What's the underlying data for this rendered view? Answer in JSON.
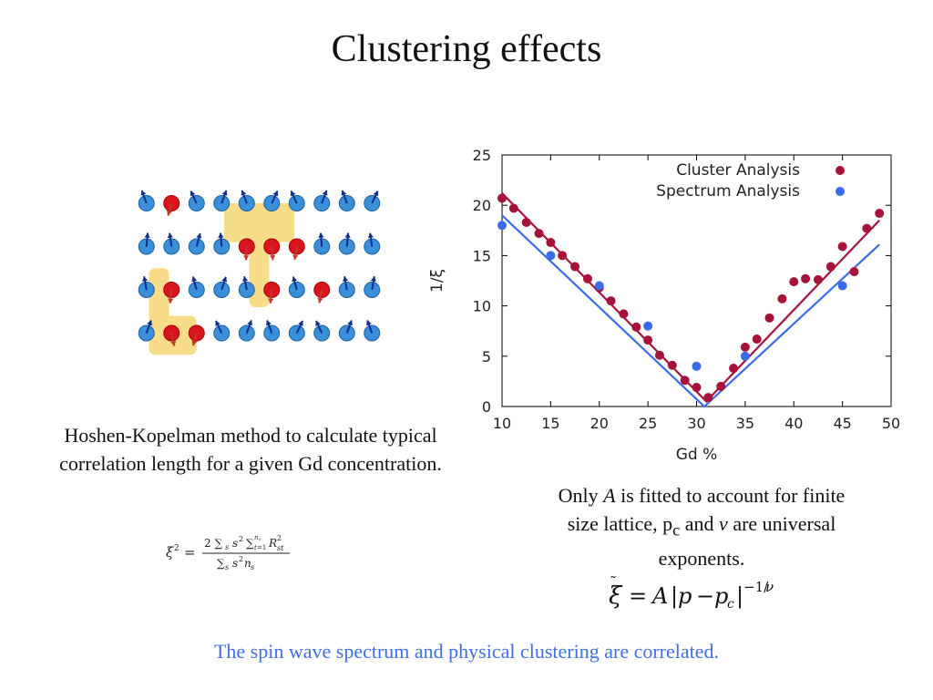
{
  "slide": {
    "title": "Clustering effects",
    "hk_caption": "Hoshen-Kopelman method to calculate typical correlation length for a given Gd concentration.",
    "fit_caption": {
      "part1": "Only ",
      "italic_A": "A",
      "part2": " is fitted to account for finite size lattice, p",
      "sub_c": "c",
      "part3": " and ",
      "italic_nu": "ν",
      "part4": " are universal exponents."
    },
    "footer": "The spin wave spectrum and physical clustering are correlated."
  },
  "lattice": {
    "rows": 4,
    "cols": 10,
    "red_sites": [
      [
        0,
        1
      ],
      [
        1,
        4
      ],
      [
        1,
        5
      ],
      [
        1,
        6
      ],
      [
        2,
        1
      ],
      [
        2,
        5
      ],
      [
        2,
        7
      ],
      [
        3,
        1
      ],
      [
        3,
        2
      ]
    ],
    "colors": {
      "site_blue": "#3a8fd9",
      "site_red": "#d9141e",
      "arrow_blue": "#0d2e8a",
      "arrow_red": "#c0392b",
      "cluster_highlight": "#f7dc8a"
    }
  },
  "formulas": {
    "correlation_length_squared": "ξ² = 2 Σ_s s² Σ_{t=1}^{n_s} R_st² / Σ_s s² n_s",
    "fit_law": "ξ̃ = A|p − p_c|^(−1/ν)"
  },
  "chart_data": {
    "type": "scatter",
    "xlabel": "Gd %",
    "ylabel": "1/ξ",
    "xlim": [
      10,
      50
    ],
    "ylim": [
      0,
      25
    ],
    "xticks": [
      10,
      15,
      20,
      25,
      30,
      35,
      40,
      45,
      50
    ],
    "yticks": [
      0,
      5,
      10,
      15,
      20,
      25
    ],
    "grid": false,
    "legend_position": "top-right",
    "series": [
      {
        "name": "Cluster Analysis",
        "color": "#a5123a",
        "points": [
          [
            10,
            20.7
          ],
          [
            11.2,
            19.7
          ],
          [
            12.5,
            18.3
          ],
          [
            13.8,
            17.2
          ],
          [
            15,
            16.3
          ],
          [
            16.2,
            15.0
          ],
          [
            17.5,
            13.9
          ],
          [
            18.8,
            12.7
          ],
          [
            20,
            11.8
          ],
          [
            21.2,
            10.5
          ],
          [
            22.5,
            9.2
          ],
          [
            23.8,
            7.9
          ],
          [
            25,
            6.6
          ],
          [
            26.2,
            5.1
          ],
          [
            27.5,
            4.1
          ],
          [
            28.8,
            2.6
          ],
          [
            30,
            1.9
          ],
          [
            31.2,
            0.9
          ],
          [
            32.5,
            2.0
          ],
          [
            33.8,
            3.8
          ],
          [
            35,
            5.9
          ],
          [
            36.2,
            6.7
          ],
          [
            37.5,
            8.8
          ],
          [
            38.8,
            10.7
          ],
          [
            40,
            12.4
          ],
          [
            41.2,
            12.7
          ],
          [
            42.5,
            12.6
          ],
          [
            43.8,
            13.9
          ],
          [
            45,
            15.9
          ],
          [
            46.2,
            13.4
          ],
          [
            47.5,
            17.7
          ],
          [
            48.8,
            19.2
          ]
        ]
      },
      {
        "name": "Spectrum Analysis",
        "color": "#3a6be8",
        "points": [
          [
            10,
            18.0
          ],
          [
            15,
            15.0
          ],
          [
            20,
            12.0
          ],
          [
            25,
            8.0
          ],
          [
            30,
            4.0
          ],
          [
            35,
            5.0
          ],
          [
            45,
            12.0
          ]
        ]
      }
    ],
    "fit_lines": [
      {
        "series": "Cluster Analysis",
        "color": "#a5123a",
        "points": [
          [
            10,
            21.2
          ],
          [
            31,
            0.5
          ],
          [
            48.8,
            18.5
          ]
        ]
      },
      {
        "series": "Spectrum Analysis",
        "color": "#3a6be8",
        "points": [
          [
            10,
            19.0
          ],
          [
            30.8,
            0.0
          ],
          [
            48.8,
            16.1
          ]
        ]
      }
    ]
  }
}
